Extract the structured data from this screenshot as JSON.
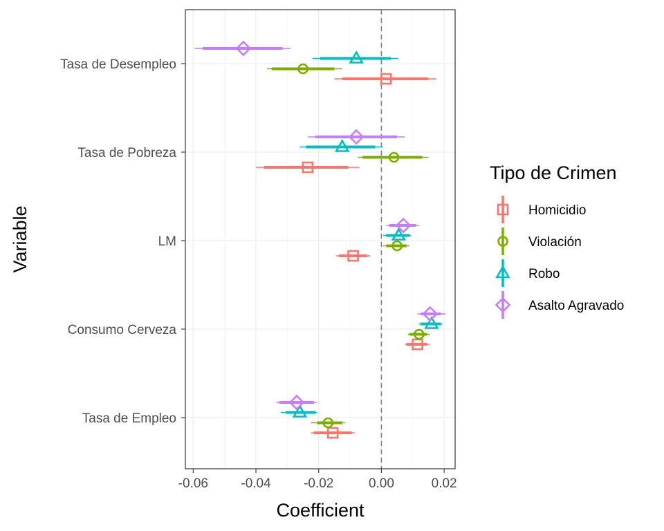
{
  "chart_data": {
    "type": "scatter",
    "subtype": "coefficient-plot",
    "xlabel": "Coefficient",
    "ylabel": "Variable",
    "xlim": [
      -0.0625,
      0.0235
    ],
    "x_ticks": [
      -0.06,
      -0.04,
      -0.02,
      0.0,
      0.02
    ],
    "x_tick_labels": [
      "-0.06",
      "-0.04",
      "-0.02",
      "0.00",
      "0.02"
    ],
    "reference_line": 0.0,
    "grid": true,
    "categories": [
      "Tasa de Desempleo",
      "Tasa de Pobreza",
      "LM",
      "Consumo Cerveza",
      "Tasa de Empleo"
    ],
    "legend": {
      "title": "Tipo de Crimen",
      "position": "right",
      "entries": [
        {
          "name": "Homicidio",
          "color": "#F8766D",
          "shape": "square"
        },
        {
          "name": "Violación",
          "color": "#7CAE00",
          "shape": "circle"
        },
        {
          "name": "Robo",
          "color": "#00BFC4",
          "shape": "triangle"
        },
        {
          "name": "Asalto Agravado",
          "color": "#C77CFF",
          "shape": "diamond"
        }
      ]
    },
    "series": [
      {
        "name": "Homicidio",
        "estimates": [
          0.0015,
          -0.0235,
          -0.009,
          0.0115,
          -0.0155
        ],
        "inner": [
          [
            -0.0125,
            0.015
          ],
          [
            -0.0375,
            -0.0105
          ],
          [
            -0.0135,
            -0.0045
          ],
          [
            0.008,
            0.0145
          ],
          [
            -0.0215,
            -0.0095
          ]
        ],
        "outer": [
          [
            -0.015,
            0.0175
          ],
          [
            -0.04,
            -0.007
          ],
          [
            -0.0145,
            -0.0035
          ],
          [
            0.0075,
            0.0155
          ],
          [
            -0.0225,
            -0.0085
          ]
        ]
      },
      {
        "name": "Violación",
        "estimates": [
          -0.025,
          0.004,
          0.005,
          0.012,
          -0.017
        ],
        "inner": [
          [
            -0.035,
            -0.015
          ],
          [
            -0.006,
            0.013
          ],
          [
            0.0015,
            0.008
          ],
          [
            0.009,
            0.0145
          ],
          [
            -0.0205,
            -0.0125
          ]
        ],
        "outer": [
          [
            -0.0365,
            -0.0125
          ],
          [
            -0.0075,
            0.015
          ],
          [
            0.0005,
            0.009
          ],
          [
            0.0085,
            0.0155
          ],
          [
            -0.0225,
            -0.0115
          ]
        ]
      },
      {
        "name": "Robo",
        "estimates": [
          -0.008,
          -0.0125,
          0.0055,
          0.016,
          -0.026
        ],
        "inner": [
          [
            -0.0195,
            0.003
          ],
          [
            -0.024,
            -0.002
          ],
          [
            0.0015,
            0.009
          ],
          [
            0.0125,
            0.019
          ],
          [
            -0.0305,
            -0.021
          ]
        ],
        "outer": [
          [
            -0.022,
            0.0055
          ],
          [
            -0.026,
            0.0005
          ],
          [
            0.0005,
            0.0095
          ],
          [
            0.012,
            0.0195
          ],
          [
            -0.032,
            -0.0205
          ]
        ]
      },
      {
        "name": "Asalto Agravado",
        "estimates": [
          -0.044,
          -0.008,
          0.007,
          0.0155,
          -0.027
        ],
        "inner": [
          [
            -0.057,
            -0.0315
          ],
          [
            -0.021,
            0.005
          ],
          [
            0.0025,
            0.011
          ],
          [
            0.0125,
            0.019
          ],
          [
            -0.0325,
            -0.0215
          ]
        ],
        "outer": [
          [
            -0.0595,
            -0.029
          ],
          [
            -0.0235,
            0.0075
          ],
          [
            0.0015,
            0.012
          ],
          [
            0.0115,
            0.0205
          ],
          [
            -0.0335,
            -0.0205
          ]
        ]
      }
    ]
  }
}
